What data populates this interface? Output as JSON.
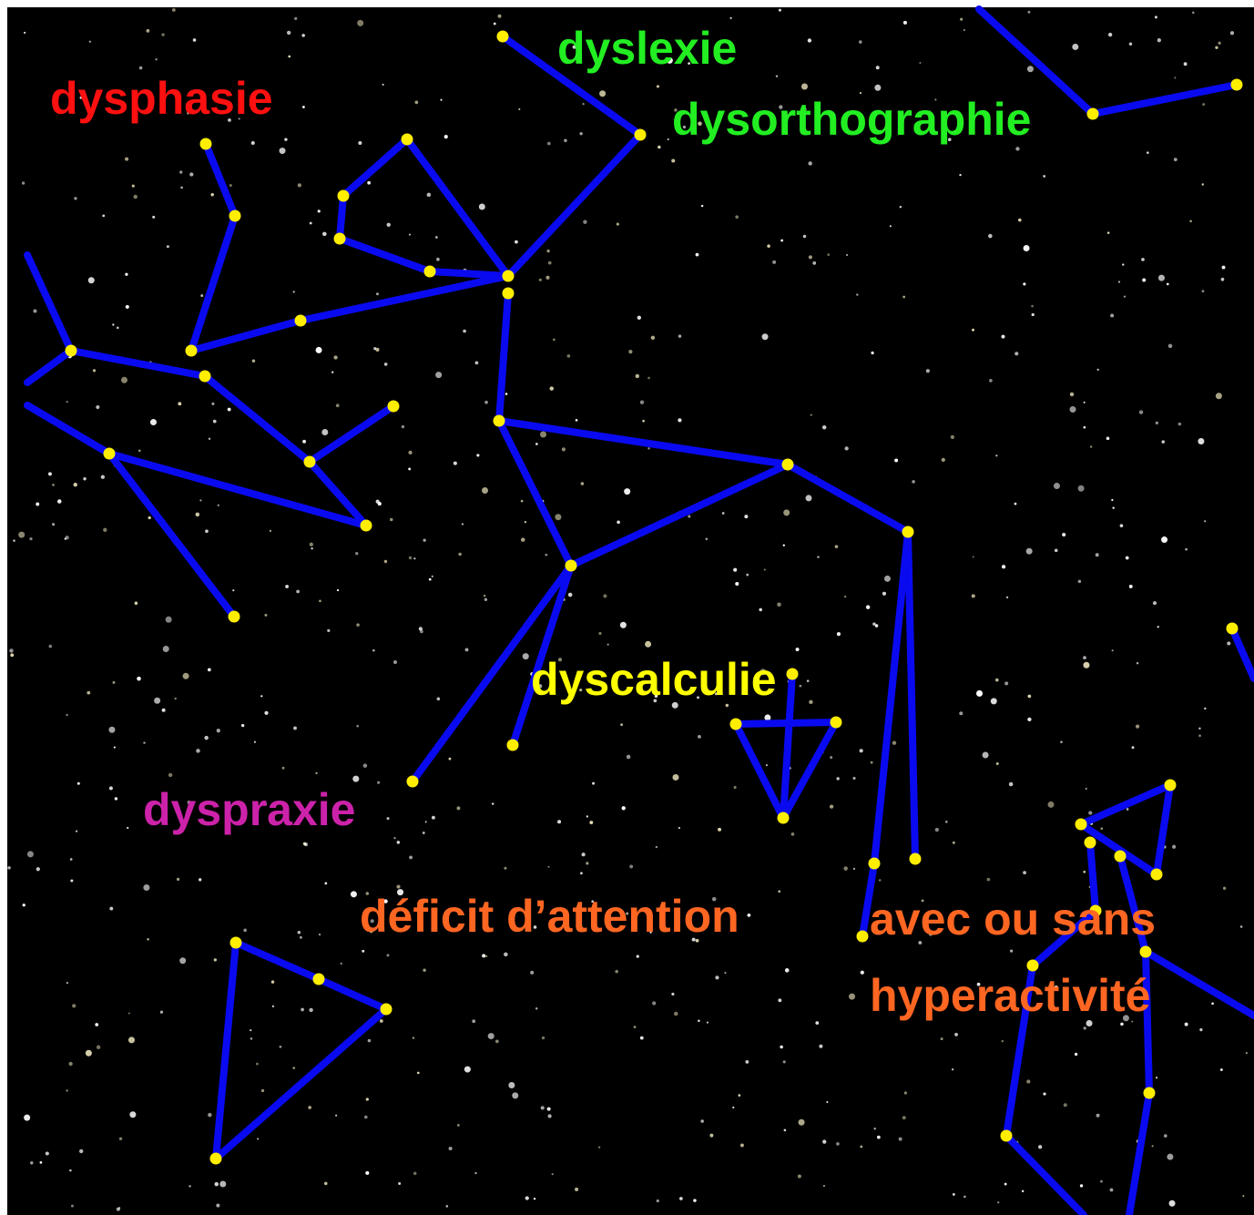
{
  "labels": {
    "dysphasie": "dysphasie",
    "dyslexie": "dyslexie",
    "dysorthographie": "dysorthographie",
    "dyscalculie": "dyscalculie",
    "dyspraxie": "dyspraxie",
    "deficit": "déficit d’attention",
    "avec": "avec ou sans",
    "hyperactivite": "hyperactivité"
  }
}
